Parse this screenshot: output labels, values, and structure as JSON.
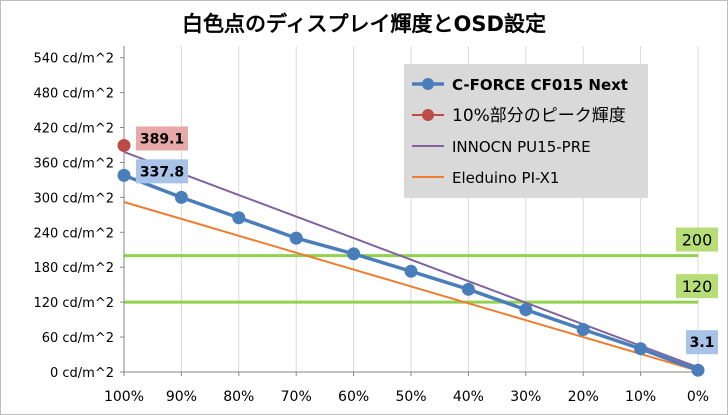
{
  "chart_data": {
    "type": "line",
    "title": "白色点のディスプレイ輝度とOSD設定",
    "x_categories": [
      "100%",
      "90%",
      "80%",
      "70%",
      "60%",
      "50%",
      "40%",
      "30%",
      "20%",
      "10%",
      "0%"
    ],
    "y_ticks": [
      0,
      60,
      120,
      180,
      240,
      300,
      360,
      420,
      480,
      540
    ],
    "y_tick_labels": [
      "0 cd/m^2",
      "60 cd/m^2",
      "120 cd/m^2",
      "180 cd/m^2",
      "240 cd/m^2",
      "300 cd/m^2",
      "360 cd/m^2",
      "420 cd/m^2",
      "480 cd/m^2",
      "540 cd/m^2"
    ],
    "ylim": [
      0,
      560
    ],
    "grid": "vertical",
    "legend_position": "top-right",
    "series": [
      {
        "name": "C-FORCE CF015 Next",
        "color": "#4a7ebb",
        "markers": true,
        "values": [
          337.8,
          300,
          265,
          230,
          203,
          173,
          142,
          107,
          73,
          40,
          3.1
        ]
      },
      {
        "name": "10%部分のピーク輝度",
        "color": "#be4b48",
        "markers": true,
        "values": [
          389.1,
          null,
          null,
          null,
          null,
          null,
          null,
          null,
          null,
          null,
          null
        ]
      },
      {
        "name": "INNOCN PU15-PRE",
        "color": "#8064a2",
        "markers": false,
        "values": [
          378,
          341,
          304,
          267,
          230,
          193,
          156,
          119,
          82,
          45,
          8
        ]
      },
      {
        "name": "Eleduino PI-X1",
        "color": "#ed7d31",
        "markers": false,
        "values": [
          292,
          263,
          234,
          205,
          176,
          147,
          118,
          89,
          60,
          31,
          2
        ]
      }
    ],
    "reference_lines": [
      {
        "value": 200,
        "label": "200",
        "color": "#92d050"
      },
      {
        "value": 120,
        "label": "120",
        "color": "#92d050"
      }
    ],
    "data_labels": [
      {
        "text": "389.1",
        "bg": "#e6a9a7"
      },
      {
        "text": "337.8",
        "bg": "#a8c3e7"
      },
      {
        "text": "3.1",
        "bg": "#a8c3e7"
      }
    ]
  },
  "colors": {
    "axis": "#868686",
    "grid": "#d9d9d9",
    "legend_bg": "#d9d9d9",
    "ref_label_bg": "#b7dd76"
  }
}
